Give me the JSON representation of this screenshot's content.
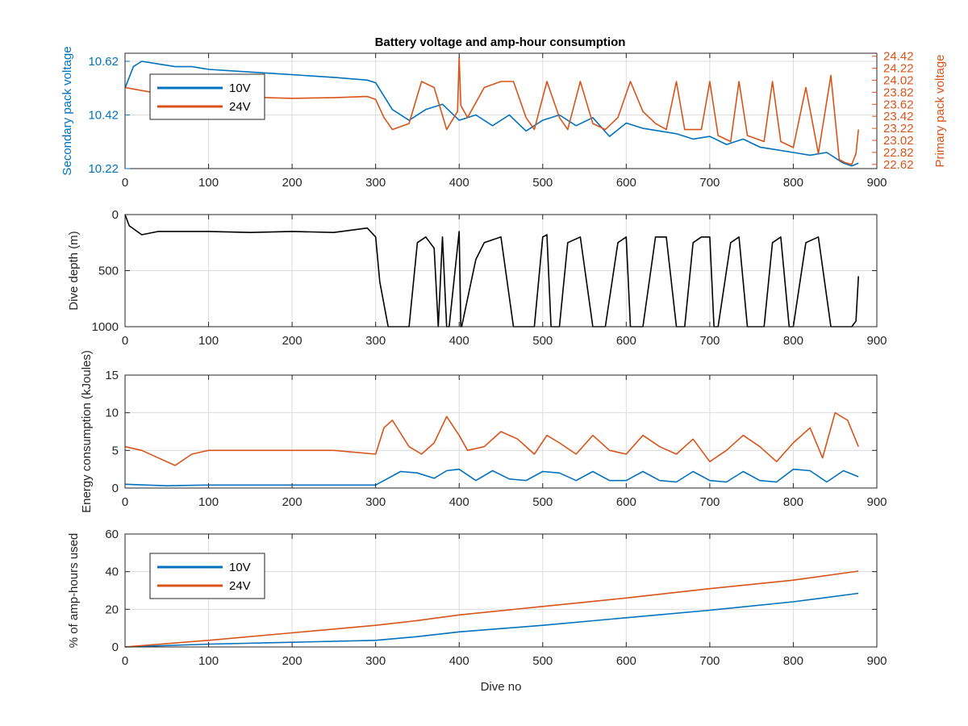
{
  "colors": {
    "blue": "#0072bd",
    "orange": "#d95319",
    "black": "#000000",
    "grid": "#dcdcdc",
    "axis": "#262626"
  },
  "chart_data": [
    {
      "type": "line",
      "title": "Battery voltage and amp-hour consumption",
      "xlabel": "",
      "ylabel_left": "Secondary pack voltage",
      "ylabel_right": "Primary pack voltage",
      "xlim": [
        0,
        900
      ],
      "ylim_left": [
        10.22,
        10.65
      ],
      "ylim_right": [
        22.55,
        24.47
      ],
      "xticks": [
        0,
        100,
        200,
        300,
        400,
        500,
        600,
        700,
        800,
        900
      ],
      "yticks_left": [
        10.22,
        10.42,
        10.62
      ],
      "yticks_right": [
        22.62,
        22.82,
        23.02,
        23.22,
        23.42,
        23.62,
        23.82,
        24.02,
        24.22,
        24.42
      ],
      "ytick_labels_left": [
        "10.22",
        "10.42",
        "10.62"
      ],
      "ytick_labels_right": [
        "22.62",
        "22.82",
        "23.02",
        "23.22",
        "23.42",
        "23.62",
        "23.82",
        "24.02",
        "24.22",
        "24.42"
      ],
      "grid": true,
      "legend": {
        "placement": "top-left",
        "entries": [
          "10V",
          "24V"
        ]
      },
      "series": [
        {
          "name": "10V",
          "axis": "left",
          "x": [
            0,
            10,
            20,
            40,
            60,
            80,
            100,
            150,
            200,
            250,
            290,
            300,
            320,
            340,
            360,
            380,
            400,
            420,
            440,
            460,
            480,
            500,
            520,
            540,
            560,
            580,
            600,
            620,
            640,
            660,
            680,
            700,
            720,
            740,
            760,
            780,
            800,
            820,
            840,
            860,
            870,
            878
          ],
          "y": [
            10.52,
            10.6,
            10.62,
            10.61,
            10.6,
            10.6,
            10.59,
            10.58,
            10.57,
            10.56,
            10.55,
            10.54,
            10.44,
            10.4,
            10.44,
            10.46,
            10.4,
            10.42,
            10.38,
            10.42,
            10.36,
            10.4,
            10.42,
            10.38,
            10.41,
            10.34,
            10.39,
            10.37,
            10.36,
            10.35,
            10.33,
            10.34,
            10.31,
            10.33,
            10.3,
            10.29,
            10.28,
            10.27,
            10.28,
            10.24,
            10.23,
            10.24
          ]
        },
        {
          "name": "24V",
          "axis": "right",
          "x": [
            0,
            20,
            40,
            60,
            100,
            150,
            200,
            250,
            290,
            300,
            310,
            320,
            340,
            355,
            370,
            385,
            398,
            400,
            402,
            410,
            430,
            450,
            465,
            480,
            490,
            505,
            520,
            530,
            545,
            560,
            575,
            590,
            605,
            620,
            635,
            648,
            660,
            670,
            690,
            700,
            710,
            725,
            735,
            745,
            765,
            775,
            785,
            800,
            815,
            830,
            845,
            855,
            862,
            870,
            875,
            878
          ],
          "y": [
            23.9,
            23.85,
            23.8,
            23.78,
            23.78,
            23.74,
            23.72,
            23.73,
            23.75,
            23.7,
            23.4,
            23.2,
            23.3,
            24.0,
            23.9,
            23.2,
            23.5,
            24.4,
            23.6,
            23.4,
            23.9,
            24.0,
            24.0,
            23.4,
            23.2,
            24.0,
            23.4,
            23.2,
            24.0,
            23.3,
            23.2,
            23.4,
            24.0,
            23.5,
            23.3,
            23.2,
            24.0,
            23.2,
            23.2,
            24.0,
            23.1,
            23.0,
            24.0,
            23.1,
            23.0,
            24.0,
            23.0,
            22.9,
            23.9,
            22.8,
            24.1,
            22.7,
            22.65,
            22.62,
            22.8,
            23.2
          ]
        }
      ]
    },
    {
      "type": "line",
      "title": "",
      "xlabel": "",
      "ylabel": "Dive depth (m)",
      "xlim": [
        0,
        900
      ],
      "ylim": [
        1000,
        0
      ],
      "xticks": [
        0,
        100,
        200,
        300,
        400,
        500,
        600,
        700,
        800,
        900
      ],
      "yticks": [
        0,
        500,
        1000
      ],
      "ytick_labels": [
        "0",
        "500",
        "1000"
      ],
      "grid": true,
      "series": [
        {
          "x": [
            0,
            5,
            20,
            40,
            100,
            150,
            200,
            250,
            290,
            300,
            305,
            315,
            340,
            350,
            360,
            370,
            375,
            380,
            385,
            388,
            400,
            402,
            403,
            420,
            430,
            450,
            465,
            480,
            490,
            500,
            505,
            510,
            520,
            530,
            545,
            560,
            575,
            590,
            600,
            605,
            620,
            635,
            648,
            660,
            670,
            680,
            690,
            700,
            705,
            710,
            725,
            735,
            745,
            765,
            775,
            785,
            795,
            800,
            815,
            830,
            845,
            855,
            865,
            870,
            875,
            878
          ],
          "y": [
            0,
            100,
            180,
            150,
            150,
            160,
            150,
            160,
            120,
            200,
            600,
            1000,
            1000,
            250,
            200,
            300,
            1000,
            200,
            1000,
            1000,
            150,
            1000,
            1000,
            400,
            250,
            200,
            1000,
            1000,
            1000,
            200,
            180,
            1000,
            1000,
            250,
            200,
            1000,
            1000,
            250,
            200,
            1000,
            1000,
            200,
            200,
            1000,
            1000,
            250,
            200,
            200,
            1000,
            1000,
            250,
            200,
            1000,
            1000,
            250,
            200,
            1000,
            1000,
            250,
            200,
            1000,
            1000,
            1000,
            1000,
            950,
            550
          ]
        }
      ]
    },
    {
      "type": "line",
      "title": "",
      "xlabel": "",
      "ylabel": "Energy consumption (kJoules)",
      "xlim": [
        0,
        900
      ],
      "ylim": [
        0,
        15
      ],
      "xticks": [
        0,
        100,
        200,
        300,
        400,
        500,
        600,
        700,
        800,
        900
      ],
      "yticks": [
        0,
        5,
        10,
        15
      ],
      "ytick_labels": [
        "0",
        "5",
        "10",
        "15"
      ],
      "grid": true,
      "series": [
        {
          "x": [
            0,
            20,
            40,
            60,
            80,
            100,
            150,
            200,
            250,
            300,
            310,
            320,
            340,
            355,
            370,
            385,
            400,
            410,
            430,
            450,
            470,
            490,
            505,
            520,
            540,
            560,
            580,
            600,
            620,
            640,
            660,
            680,
            700,
            720,
            740,
            760,
            780,
            800,
            820,
            835,
            850,
            865,
            878
          ],
          "y": [
            5.5,
            5.0,
            4.0,
            3.0,
            4.5,
            5.0,
            5.0,
            5.0,
            5.0,
            4.5,
            8.0,
            9.0,
            5.5,
            4.5,
            6.0,
            9.5,
            7.0,
            5.0,
            5.5,
            7.5,
            6.5,
            4.5,
            7.0,
            6.0,
            4.5,
            7.0,
            5.0,
            4.5,
            7.0,
            5.5,
            4.5,
            6.5,
            3.5,
            5.0,
            7.0,
            5.5,
            3.5,
            6.0,
            8.0,
            4.0,
            10.0,
            9.0,
            5.5
          ]
        },
        {
          "x": [
            0,
            50,
            100,
            150,
            200,
            250,
            300,
            310,
            330,
            350,
            370,
            385,
            400,
            420,
            440,
            460,
            480,
            500,
            520,
            540,
            560,
            580,
            600,
            620,
            640,
            660,
            680,
            700,
            720,
            740,
            760,
            780,
            800,
            820,
            840,
            860,
            878
          ],
          "y": [
            0.5,
            0.3,
            0.4,
            0.4,
            0.4,
            0.4,
            0.4,
            1.0,
            2.2,
            2.0,
            1.3,
            2.3,
            2.5,
            1.0,
            2.3,
            1.2,
            1.0,
            2.2,
            2.0,
            1.0,
            2.2,
            1.0,
            1.0,
            2.2,
            1.0,
            0.8,
            2.2,
            1.0,
            0.8,
            2.2,
            1.0,
            0.8,
            2.5,
            2.3,
            0.8,
            2.3,
            1.5
          ]
        }
      ]
    },
    {
      "type": "line",
      "title": "",
      "xlabel": "Dive no",
      "ylabel": "% of amp-hours used",
      "xlim": [
        0,
        900
      ],
      "ylim": [
        0,
        60
      ],
      "xticks": [
        0,
        100,
        200,
        300,
        400,
        500,
        600,
        700,
        800,
        900
      ],
      "yticks": [
        0,
        20,
        40,
        60
      ],
      "ytick_labels": [
        "0",
        "20",
        "40",
        "60"
      ],
      "grid": true,
      "legend": {
        "placement": "top-left",
        "entries": [
          "10V",
          "24V"
        ]
      },
      "series": [
        {
          "name": "10V",
          "x": [
            0,
            100,
            200,
            300,
            350,
            400,
            500,
            600,
            700,
            800,
            878
          ],
          "y": [
            0,
            1.5,
            2.5,
            3.5,
            5.5,
            8.0,
            11.5,
            15.5,
            19.5,
            24.0,
            28.5
          ]
        },
        {
          "name": "24V",
          "x": [
            0,
            100,
            200,
            300,
            350,
            400,
            500,
            600,
            700,
            800,
            878
          ],
          "y": [
            0,
            3.5,
            7.5,
            11.5,
            14.0,
            17.0,
            21.5,
            26.0,
            31.0,
            35.5,
            40.3
          ]
        }
      ]
    }
  ]
}
